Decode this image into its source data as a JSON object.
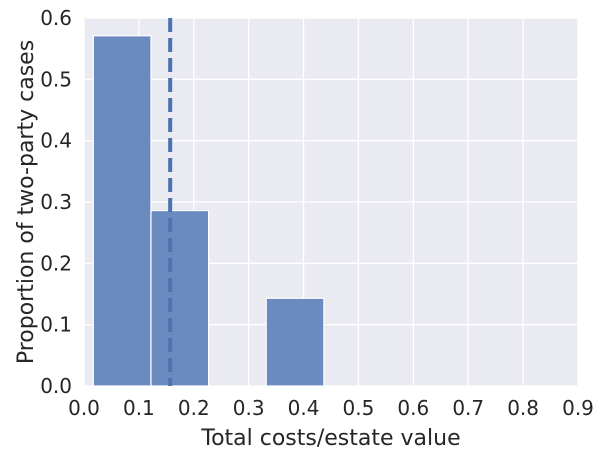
{
  "chart_data": {
    "type": "bar",
    "subtype": "histogram",
    "title": "",
    "xlabel": "Total costs/estate value",
    "ylabel": "Proportion of two-party cases",
    "xlim": [
      0,
      0.9
    ],
    "ylim": [
      0,
      0.6
    ],
    "xticks": [
      "0.0",
      "0.1",
      "0.2",
      "0.3",
      "0.4",
      "0.5",
      "0.6",
      "0.7",
      "0.8",
      "0.9"
    ],
    "yticks": [
      "0.0",
      "0.1",
      "0.2",
      "0.3",
      "0.4",
      "0.5",
      "0.6"
    ],
    "grid": true,
    "bins": [
      {
        "x0": 0.017,
        "x1": 0.122,
        "value": 0.571
      },
      {
        "x0": 0.122,
        "x1": 0.227,
        "value": 0.286
      },
      {
        "x0": 0.227,
        "x1": 0.332,
        "value": 0.0
      },
      {
        "x0": 0.332,
        "x1": 0.437,
        "value": 0.143
      }
    ],
    "reference_line": {
      "orientation": "vertical",
      "x": 0.157,
      "style": "dashed"
    },
    "colors": {
      "bar_fill": "#6b8ac0",
      "bar_edge": "#ffffff",
      "reference_line": "#4c72b0",
      "plot_background": "#eaeaf2",
      "grid": "#ffffff",
      "text": "#262626"
    }
  }
}
